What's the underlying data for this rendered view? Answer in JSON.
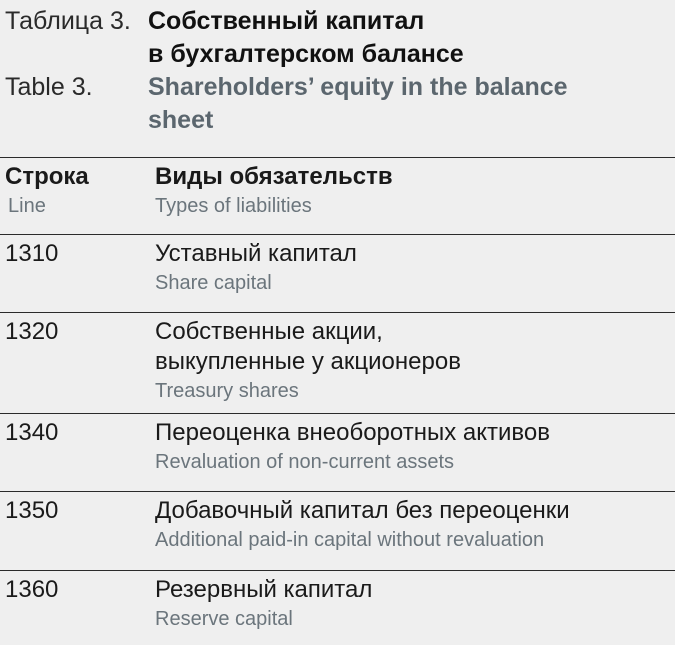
{
  "title": {
    "label_ru": "Таблица 3.",
    "title_ru_1": "Собственный капитал",
    "title_ru_2": "в бухгалтерском балансе",
    "label_en": "Table 3.",
    "title_en_1": "Shareholders’ equity in the balance",
    "title_en_2": "sheet"
  },
  "header": {
    "line_ru": "Строка",
    "line_en": "Line",
    "types_ru": "Виды обязательств",
    "types_en": "Types of liabilities"
  },
  "rows": [
    {
      "line": "1310",
      "ru": "Уставный капитал",
      "en": "Share capital"
    },
    {
      "line": "1320",
      "ru": "Собственные акции, выкупленные у акционеров",
      "en": "Treasury shares"
    },
    {
      "line": "1340",
      "ru": "Переоценка внеоборотных активов",
      "en": "Revaluation of non-current assets"
    },
    {
      "line": "1350",
      "ru": "Добавочный капитал без переоценки",
      "en": "Additional paid-in capital without revaluation"
    },
    {
      "line": "1360",
      "ru": "Резервный капитал",
      "en": "Reserve capital"
    }
  ]
}
